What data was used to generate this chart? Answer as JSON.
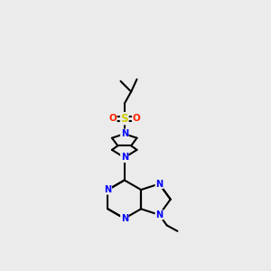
{
  "bg_color": "#ebebeb",
  "bond_color": "#000000",
  "N_color": "#0000ff",
  "O_color": "#ff2200",
  "S_color": "#cccc00",
  "line_width": 1.5,
  "figsize": [
    3.0,
    3.0
  ],
  "dpi": 100,
  "xlim": [
    0,
    10
  ],
  "ylim": [
    0,
    10
  ]
}
